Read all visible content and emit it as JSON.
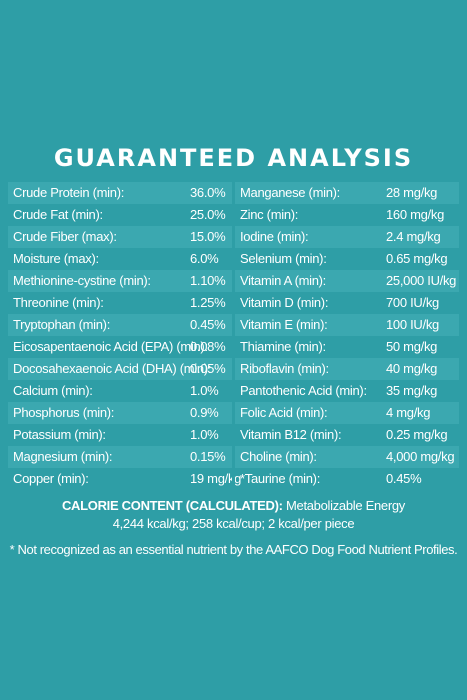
{
  "title": "GUARANTEED ANALYSIS",
  "left_column": [
    {
      "name": "Crude Protein (min):",
      "value": "36.0%"
    },
    {
      "name": "Crude Fat (min):",
      "value": "25.0%"
    },
    {
      "name": "Crude Fiber (max):",
      "value": "15.0%"
    },
    {
      "name": "Moisture (max):",
      "value": "6.0%"
    },
    {
      "name": "Methionine-cystine (min):",
      "value": "1.10%"
    },
    {
      "name": "Threonine (min):",
      "value": "1.25%"
    },
    {
      "name": "Tryptophan (min):",
      "value": "0.45%"
    },
    {
      "name": "Eicosapentaenoic Acid (EPA) (min):",
      "value": "0.08%"
    },
    {
      "name": "Docosahexaenoic Acid (DHA) (min):",
      "value": "0.05%"
    },
    {
      "name": "Calcium (min):",
      "value": "1.0%"
    },
    {
      "name": "Phosphorus (min):",
      "value": "0.9%"
    },
    {
      "name": "Potassium (min):",
      "value": "1.0%"
    },
    {
      "name": "Magnesium (min):",
      "value": "0.15%"
    },
    {
      "name": "Copper (min):",
      "value": "19 mg/kg"
    }
  ],
  "right_column": [
    {
      "name": "Manganese (min):",
      "value": "28 mg/kg"
    },
    {
      "name": "Zinc (min):",
      "value": "160 mg/kg"
    },
    {
      "name": "Iodine (min):",
      "value": "2.4 mg/kg"
    },
    {
      "name": "Selenium (min):",
      "value": "0.65 mg/kg"
    },
    {
      "name": "Vitamin A (min):",
      "value": "25,000 IU/kg"
    },
    {
      "name": "Vitamin D (min):",
      "value": "700 IU/kg"
    },
    {
      "name": "Vitamin E (min):",
      "value": "100 IU/kg"
    },
    {
      "name": "Thiamine (min):",
      "value": "50 mg/kg"
    },
    {
      "name": "Riboflavin (min):",
      "value": "40 mg/kg"
    },
    {
      "name": "Pantothenic Acid (min):",
      "value": "35 mg/kg"
    },
    {
      "name": "Folic Acid (min):",
      "value": "4 mg/kg"
    },
    {
      "name": "Vitamin B12 (min):",
      "value": "0.25 mg/kg"
    },
    {
      "name": "Choline (min):",
      "value": "4,000 mg/kg"
    },
    {
      "name": "*Taurine (min):",
      "value": "0.45%"
    }
  ],
  "calorie": {
    "label": "CALORIE CONTENT (CALCULATED):",
    "line1_rest": " Metabolizable Energy",
    "line2": "4,244 kcal/kg; 258 kcal/cup; 2 kcal/per piece"
  },
  "footnote": "* Not recognized as an essential nutrient by the AAFCO Dog Food Nutrient Profiles."
}
